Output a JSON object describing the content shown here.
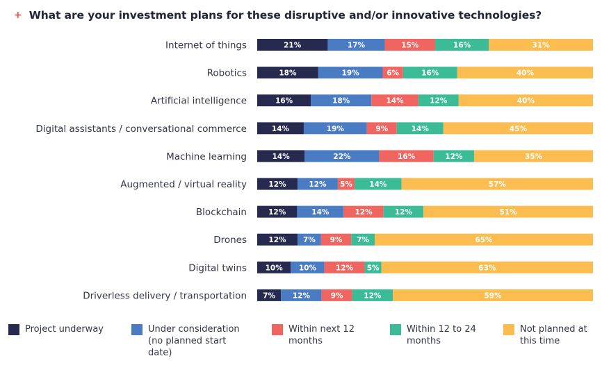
{
  "header": {
    "marker": "+",
    "title": "What are your investment plans for these disruptive and/or innovative technologies?"
  },
  "colors": [
    "#262a4e",
    "#4a7cc4",
    "#f0655f",
    "#3bbc97",
    "#fbbc50"
  ],
  "legend": [
    {
      "label": "Project underway"
    },
    {
      "label": "Under consideration (no planned start date)"
    },
    {
      "label": "Within next 12 months"
    },
    {
      "label": "Within 12 to 24 months"
    },
    {
      "label": "Not planned at this time"
    }
  ],
  "chart_data": {
    "type": "bar",
    "orientation": "horizontal",
    "stacked": true,
    "title": "What are your investment plans for these disruptive and/or innovative technologies?",
    "categories": [
      "Internet of things",
      "Robotics",
      "Artificial intelligence",
      "Digital assistants / conversational commerce",
      "Machine learning",
      "Augmented / virtual reality",
      "Blockchain",
      "Drones",
      "Digital twins",
      "Driverless delivery / transportation"
    ],
    "series": [
      {
        "name": "Project underway",
        "values": [
          21,
          18,
          16,
          14,
          14,
          12,
          12,
          12,
          10,
          7
        ]
      },
      {
        "name": "Under consideration (no planned start date)",
        "values": [
          17,
          19,
          18,
          19,
          22,
          12,
          14,
          7,
          10,
          12
        ]
      },
      {
        "name": "Within next 12 months",
        "values": [
          15,
          6,
          14,
          9,
          16,
          5,
          12,
          9,
          12,
          9
        ]
      },
      {
        "name": "Within 12 to 24 months",
        "values": [
          16,
          16,
          12,
          14,
          12,
          14,
          12,
          7,
          5,
          12
        ]
      },
      {
        "name": "Not planned at this time",
        "values": [
          31,
          40,
          40,
          45,
          35,
          57,
          51,
          65,
          63,
          59
        ]
      }
    ],
    "value_suffix": "%",
    "legend_position": "bottom",
    "grid": false
  }
}
